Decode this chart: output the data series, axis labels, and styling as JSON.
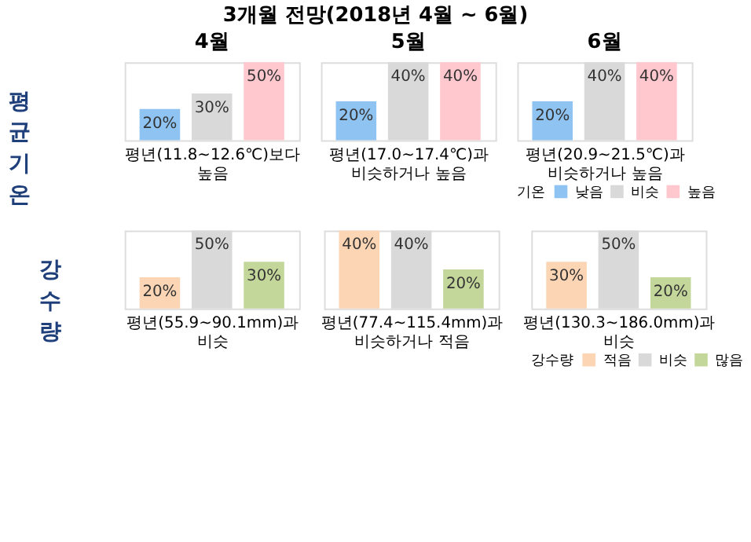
{
  "chart_data": [
    {
      "type": "bar",
      "tick_labels": false,
      "grid": false,
      "title": "4월",
      "ylabel": "평균기온",
      "xlabel": "평년(11.8~12.6℃)보다\n높음",
      "annotations": [
        "3개월 전망(2018년 4월 ~ 6월)"
      ],
      "categories": [
        null
      ],
      "series": [
        {
          "color": "#8ec3f2",
          "values": [
            20
          ],
          "value_labels": [
            "20%"
          ]
        },
        {
          "color": "#d9d9d9",
          "values": [
            30
          ],
          "value_labels": [
            "30%"
          ]
        },
        {
          "color": "#ffc7ce",
          "values": [
            50
          ],
          "value_labels": [
            "50%"
          ]
        }
      ]
    },
    {
      "type": "bar",
      "tick_labels": false,
      "grid": false,
      "title": "5월",
      "xlabel": "평년(17.0~17.4℃)과\n비슷하거나 높음",
      "categories": [
        null
      ],
      "series": [
        {
          "color": "#8ec3f2",
          "values": [
            20
          ],
          "value_labels": [
            "20%"
          ]
        },
        {
          "color": "#d9d9d9",
          "values": [
            40
          ],
          "value_labels": [
            "40%"
          ]
        },
        {
          "color": "#ffc7ce",
          "values": [
            40
          ],
          "value_labels": [
            "40%"
          ]
        }
      ]
    },
    {
      "type": "bar",
      "tick_labels": false,
      "grid": false,
      "title": "6월",
      "xlabel": "평년(20.9~21.5℃)과\n비슷하거나 높음",
      "legend": "bottom",
      "legend_title": "기온",
      "categories": [
        null
      ],
      "series": [
        {
          "name": "낮음",
          "color": "#8ec3f2",
          "values": [
            20
          ],
          "value_labels": [
            "20%"
          ]
        },
        {
          "name": "비슷",
          "color": "#d9d9d9",
          "values": [
            40
          ],
          "value_labels": [
            "40%"
          ]
        },
        {
          "name": "높음",
          "color": "#ffc7ce",
          "values": [
            40
          ],
          "value_labels": [
            "40%"
          ]
        }
      ]
    },
    {
      "type": "bar",
      "tick_labels": false,
      "grid": false,
      "ylabel": "강수량",
      "xlabel": "평년(55.9~90.1mm)과\n비슷",
      "categories": [
        null
      ],
      "series": [
        {
          "color": "#fcd5b4",
          "values": [
            20
          ],
          "value_labels": [
            "20%"
          ]
        },
        {
          "color": "#d9d9d9",
          "values": [
            50
          ],
          "value_labels": [
            "50%"
          ]
        },
        {
          "color": "#c4d79b",
          "values": [
            30
          ],
          "value_labels": [
            "30%"
          ]
        }
      ]
    },
    {
      "type": "bar",
      "tick_labels": false,
      "grid": false,
      "xlabel": "평년(77.4~115.4mm)과\n비슷하거나 적음",
      "categories": [
        null
      ],
      "series": [
        {
          "color": "#fcd5b4",
          "values": [
            40
          ],
          "value_labels": [
            "40%"
          ]
        },
        {
          "color": "#d9d9d9",
          "values": [
            40
          ],
          "value_labels": [
            "40%"
          ]
        },
        {
          "color": "#c4d79b",
          "values": [
            20
          ],
          "value_labels": [
            "20%"
          ]
        }
      ]
    },
    {
      "type": "bar",
      "tick_labels": false,
      "grid": false,
      "xlabel": "평년(130.3~186.0mm)과\n비슷",
      "legend": "bottom",
      "legend_title": "강수량",
      "categories": [
        null
      ],
      "series": [
        {
          "name": "적음",
          "color": "#fcd5b4",
          "values": [
            30
          ],
          "value_labels": [
            "30%"
          ]
        },
        {
          "name": "비슷",
          "color": "#d9d9d9",
          "values": [
            50
          ],
          "value_labels": [
            "50%"
          ]
        },
        {
          "name": "많음",
          "color": "#c4d79b",
          "values": [
            20
          ],
          "value_labels": [
            "20%"
          ]
        }
      ]
    }
  ]
}
